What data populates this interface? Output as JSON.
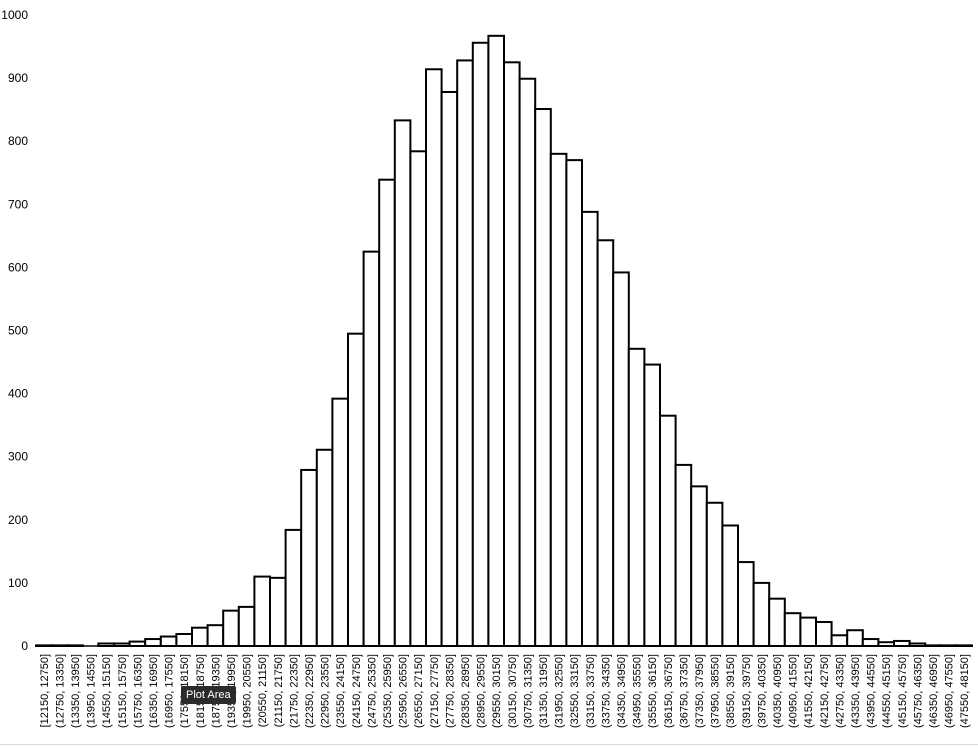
{
  "chart_data": {
    "type": "bar",
    "title": "",
    "xlabel": "",
    "ylabel": "",
    "ylim": [
      0,
      1000
    ],
    "yticks": [
      0,
      100,
      200,
      300,
      400,
      500,
      600,
      700,
      800,
      900,
      1000
    ],
    "grid": false,
    "legend": "none",
    "bar_fill": "#ffffff",
    "bar_stroke": "#000000",
    "categories": [
      "[12150, 12750]",
      "(12750, 13350]",
      "(13350, 13950]",
      "(13950, 14550]",
      "(14550, 15150]",
      "(15150, 15750]",
      "(15750, 16350]",
      "(16350, 16950]",
      "(16950, 17550]",
      "(17550, 18150]",
      "(18150, 18750]",
      "(18750, 19350]",
      "(19350, 19950]",
      "(19950, 20550]",
      "(20550, 21150]",
      "(21150, 21750]",
      "(21750, 22350]",
      "(22350, 22950]",
      "(22950, 23550]",
      "(23550, 24150]",
      "(24150, 24750]",
      "(24750, 25350]",
      "(25350, 25950]",
      "(25950, 26550]",
      "(26550, 27150]",
      "(27150, 27750]",
      "(27750, 28350]",
      "(28350, 28950]",
      "(28950, 29550]",
      "(29550, 30150]",
      "(30150, 30750]",
      "(30750, 31350]",
      "(31350, 31950]",
      "(31950, 32550]",
      "(32550, 33150]",
      "(33150, 33750]",
      "(33750, 34350]",
      "(34350, 34950]",
      "(34950, 35550]",
      "(35550, 36150]",
      "(36150, 36750]",
      "(36750, 37350]",
      "(37350, 37950]",
      "(37950, 38550]",
      "(38550, 39150]",
      "(39150, 39750]",
      "(39750, 40350]",
      "(40350, 40950]",
      "(40950, 41550]",
      "(41550, 42150]",
      "(42150, 42750]",
      "(42750, 43350]",
      "(43350, 43950]",
      "(43950, 44550]",
      "(44550, 45150]",
      "(45150, 45750]",
      "(45750, 46350]",
      "(46350, 46950]",
      "(46950, 47550]",
      "(47550, 48150]"
    ],
    "values": [
      1,
      1,
      1,
      0,
      4,
      4,
      7,
      11,
      15,
      19,
      29,
      33,
      56,
      62,
      110,
      108,
      184,
      279,
      311,
      392,
      495,
      625,
      739,
      833,
      784,
      914,
      878,
      928,
      956,
      967,
      925,
      899,
      851,
      780,
      770,
      688,
      643,
      592,
      471,
      446,
      365,
      287,
      253,
      227,
      191,
      133,
      100,
      75,
      52,
      45,
      38,
      17,
      25,
      11,
      6,
      8,
      4,
      1,
      1,
      1
    ]
  },
  "tooltip": {
    "text": "Plot Area"
  }
}
